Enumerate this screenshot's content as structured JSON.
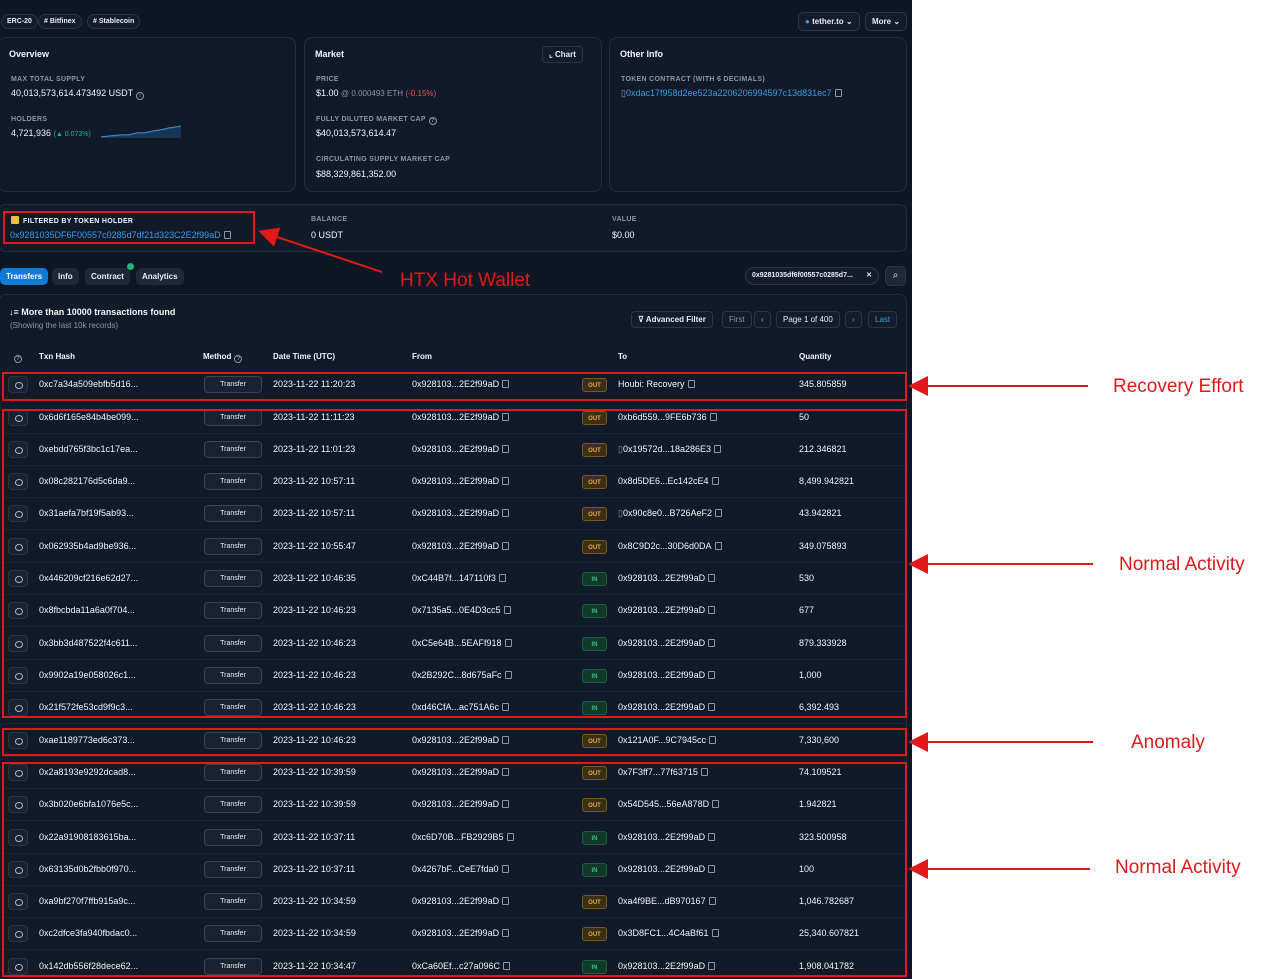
{
  "tags": [
    "ERC-20",
    "# Bitfinex",
    "# Stablecoin"
  ],
  "top_buttons": {
    "site": "tether.to",
    "more": "More"
  },
  "overview": {
    "title": "Overview",
    "max_supply_label": "MAX TOTAL SUPPLY",
    "max_supply_value": "40,013,573,614.473492 USDT",
    "holders_label": "HOLDERS",
    "holders_value": "4,721,936",
    "holders_change": "(▲ 0.073%)"
  },
  "market": {
    "title": "Market",
    "chart_button": "Chart",
    "price_label": "PRICE",
    "price_value": "$1.00",
    "price_eth": "@ 0.000493 ETH",
    "price_change": "(-0.15%)",
    "fdmc_label": "FULLY DILUTED MARKET CAP",
    "fdmc_value": "$40,013,573,614.47",
    "csmc_label": "CIRCULATING SUPPLY MARKET CAP",
    "csmc_value": "$88,329,861,352.00"
  },
  "other_info": {
    "title": "Other Info",
    "contract_label": "TOKEN CONTRACT (WITH 6 DECIMALS)",
    "contract_value": "0xdac17f958d2ee523a2206206994597c13d831ec7"
  },
  "filter": {
    "label": "FILTERED BY TOKEN HOLDER",
    "address": "0x9281035DF6F00557c0285d7df21d323C2E2f99aD",
    "balance_label": "BALANCE",
    "balance_value": "0 USDT",
    "value_label": "VALUE",
    "value_value": "$0.00"
  },
  "tabs": [
    "Transfers",
    "Info",
    "Contract",
    "Analytics"
  ],
  "search_chip": "0x9281035df6f00557c0285d7...",
  "summary": {
    "title": "More than 10000 transactions found",
    "subtitle": "(Showing the last 10k records)"
  },
  "pager": {
    "filter": "Advanced Filter",
    "first": "First",
    "page": "Page 1 of 400",
    "last": "Last"
  },
  "headers": {
    "hash": "Txn Hash",
    "method": "Method",
    "date": "Date Time (UTC)",
    "from": "From",
    "to": "To",
    "qty": "Quantity"
  },
  "rows": [
    {
      "hash": "0xc7a34a509ebfb5d16...",
      "method": "Transfer",
      "date": "2023-11-22 11:20:23",
      "from": "0x928103...2E2f99aD",
      "dir": "OUT",
      "to": "Houbi: Recovery",
      "qty": "345.805859"
    },
    {
      "hash": "0x6d6f165e84b4be099...",
      "method": "Transfer",
      "date": "2023-11-22 11:11:23",
      "from": "0x928103...2E2f99aD",
      "dir": "OUT",
      "to": "0xb6d559...9FE6b736",
      "qty": "50"
    },
    {
      "hash": "0xebdd765f3bc1c17ea...",
      "method": "Transfer",
      "date": "2023-11-22 11:01:23",
      "from": "0x928103...2E2f99aD",
      "dir": "OUT",
      "to": "0x19572d...18a286E3",
      "qty": "212.346821"
    },
    {
      "hash": "0x08c282176d5c6da9...",
      "method": "Transfer",
      "date": "2023-11-22 10:57:11",
      "from": "0x928103...2E2f99aD",
      "dir": "OUT",
      "to": "0x8d5DE6...Ec142cE4",
      "qty": "8,499.942821"
    },
    {
      "hash": "0x31aefa7bf19f5ab93...",
      "method": "Transfer",
      "date": "2023-11-22 10:57:11",
      "from": "0x928103...2E2f99aD",
      "dir": "OUT",
      "to": "0x90c8e0...B726AeF2",
      "qty": "43.942821"
    },
    {
      "hash": "0x062935b4ad9be936...",
      "method": "Transfer",
      "date": "2023-11-22 10:55:47",
      "from": "0x928103...2E2f99aD",
      "dir": "OUT",
      "to": "0x8C9D2c...30D6d0DA",
      "qty": "349.075893"
    },
    {
      "hash": "0x446209cf216e62d27...",
      "method": "Transfer",
      "date": "2023-11-22 10:46:35",
      "from": "0xC44B7f...147110f3",
      "dir": "IN",
      "to": "0x928103...2E2f99aD",
      "qty": "530"
    },
    {
      "hash": "0x8fbcbda11a6a0f704...",
      "method": "Transfer",
      "date": "2023-11-22 10:46:23",
      "from": "0x7135a5...0E4D3cc5",
      "dir": "IN",
      "to": "0x928103...2E2f99aD",
      "qty": "677"
    },
    {
      "hash": "0x3bb3d487522f4c611...",
      "method": "Transfer",
      "date": "2023-11-22 10:46:23",
      "from": "0xC5e64B...5EAFf918",
      "dir": "IN",
      "to": "0x928103...2E2f99aD",
      "qty": "879.333928"
    },
    {
      "hash": "0x9902a19e058026c1...",
      "method": "Transfer",
      "date": "2023-11-22 10:46:23",
      "from": "0x2B292C...8d675aFc",
      "dir": "IN",
      "to": "0x928103...2E2f99aD",
      "qty": "1,000"
    },
    {
      "hash": "0x21f572fe53cd9f9c3...",
      "method": "Transfer",
      "date": "2023-11-22 10:46:23",
      "from": "0xd46CfA...ac751A6c",
      "dir": "IN",
      "to": "0x928103...2E2f99aD",
      "qty": "6,392.493"
    },
    {
      "hash": "0xae1189773ed6c373...",
      "method": "Transfer",
      "date": "2023-11-22 10:46:23",
      "from": "0x928103...2E2f99aD",
      "dir": "OUT",
      "to": "0x121A0F...9C7945cc",
      "qty": "7,330,600"
    },
    {
      "hash": "0x2a8193e9292dcad8...",
      "method": "Transfer",
      "date": "2023-11-22 10:39:59",
      "from": "0x928103...2E2f99aD",
      "dir": "OUT",
      "to": "0x7F3ff7...77f63715",
      "qty": "74.109521"
    },
    {
      "hash": "0x3b020e6bfa1076e5c...",
      "method": "Transfer",
      "date": "2023-11-22 10:39:59",
      "from": "0x928103...2E2f99aD",
      "dir": "OUT",
      "to": "0x54D545...56eA878D",
      "qty": "1.942821"
    },
    {
      "hash": "0x22a91908183615ba...",
      "method": "Transfer",
      "date": "2023-11-22 10:37:11",
      "from": "0xc6D70B...FB2929B5",
      "dir": "IN",
      "to": "0x928103...2E2f99aD",
      "qty": "323.500958"
    },
    {
      "hash": "0x63135d0b2fbb0f970...",
      "method": "Transfer",
      "date": "2023-11-22 10:37:11",
      "from": "0x4267bF...CeE7fda0",
      "dir": "IN",
      "to": "0x928103...2E2f99aD",
      "qty": "100"
    },
    {
      "hash": "0xa9bf270f7ffb915a9c...",
      "method": "Transfer",
      "date": "2023-11-22 10:34:59",
      "from": "0x928103...2E2f99aD",
      "dir": "OUT",
      "to": "0xa4f9BE...dB970167",
      "qty": "1,046.782687"
    },
    {
      "hash": "0xc2dfce3fa940fbdac0...",
      "method": "Transfer",
      "date": "2023-11-22 10:34:59",
      "from": "0x928103...2E2f99aD",
      "dir": "OUT",
      "to": "0x3D8FC1...4C4aBf61",
      "qty": "25,340.607821"
    },
    {
      "hash": "0x142db556f28dece62...",
      "method": "Transfer",
      "date": "2023-11-22 10:34:47",
      "from": "0xCa60Ef...c27a096C",
      "dir": "IN",
      "to": "0x928103...2E2f99aD",
      "qty": "1,908.041782"
    }
  ],
  "annotations": {
    "hot_wallet": "HTX Hot Wallet",
    "recovery": "Recovery Effort",
    "normal1": "Normal Activity",
    "anomaly": "Anomaly",
    "normal2": "Normal Activity"
  },
  "colors": {
    "background": "#0f1624",
    "link": "#3d9be0",
    "annotation": "#e01a1a",
    "out": "#e8a93a",
    "in": "#2fc48a"
  }
}
